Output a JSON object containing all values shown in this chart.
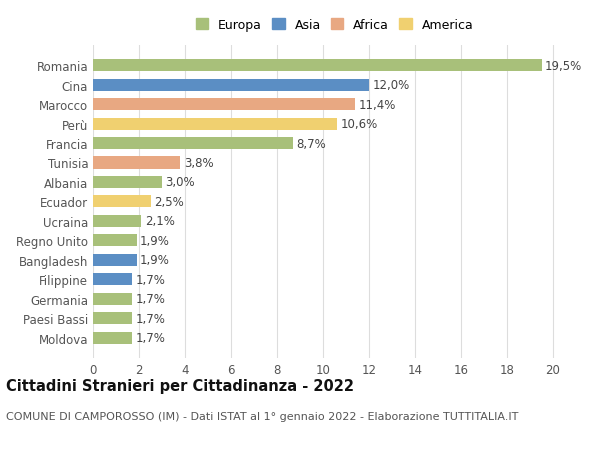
{
  "categories": [
    "Romania",
    "Cina",
    "Marocco",
    "Perù",
    "Francia",
    "Tunisia",
    "Albania",
    "Ecuador",
    "Ucraina",
    "Regno Unito",
    "Bangladesh",
    "Filippine",
    "Germania",
    "Paesi Bassi",
    "Moldova"
  ],
  "values": [
    19.5,
    12.0,
    11.4,
    10.6,
    8.7,
    3.8,
    3.0,
    2.5,
    2.1,
    1.9,
    1.9,
    1.7,
    1.7,
    1.7,
    1.7
  ],
  "labels": [
    "19,5%",
    "12,0%",
    "11,4%",
    "10,6%",
    "8,7%",
    "3,8%",
    "3,0%",
    "2,5%",
    "2,1%",
    "1,9%",
    "1,9%",
    "1,7%",
    "1,7%",
    "1,7%",
    "1,7%"
  ],
  "continents": [
    "Europa",
    "Asia",
    "Africa",
    "America",
    "Europa",
    "Africa",
    "Europa",
    "America",
    "Europa",
    "Europa",
    "Asia",
    "Asia",
    "Europa",
    "Europa",
    "Europa"
  ],
  "colors": {
    "Europa": "#a8c07a",
    "Asia": "#5b8ec4",
    "Africa": "#e8a882",
    "America": "#f0d070"
  },
  "xlim": [
    0,
    21
  ],
  "xticks": [
    0,
    2,
    4,
    6,
    8,
    10,
    12,
    14,
    16,
    18,
    20
  ],
  "title": "Cittadini Stranieri per Cittadinanza - 2022",
  "subtitle": "COMUNE DI CAMPOROSSO (IM) - Dati ISTAT al 1° gennaio 2022 - Elaborazione TUTTITALIA.IT",
  "background_color": "#ffffff",
  "grid_color": "#dddddd",
  "bar_height": 0.62,
  "label_fontsize": 8.5,
  "ytick_fontsize": 8.5,
  "xtick_fontsize": 8.5,
  "title_fontsize": 10.5,
  "subtitle_fontsize": 8.0,
  "legend_fontsize": 9.0
}
